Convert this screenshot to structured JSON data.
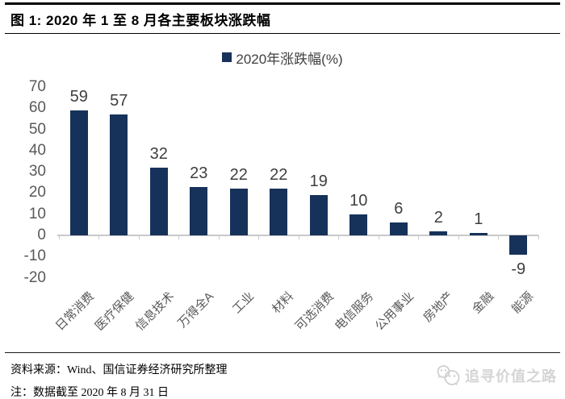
{
  "header": {
    "title": "图 1: 2020 年 1 至 8 月各主要板块涨跌幅"
  },
  "legend": {
    "label": "2020年涨跌幅(%)"
  },
  "chart_data": {
    "type": "bar",
    "title": "2020 年 1 至 8 月各主要板块涨跌幅",
    "legend": "2020年涨跌幅(%)",
    "legend_position": "top",
    "categories": [
      "日常消费",
      "医疗保健",
      "信息技术",
      "万得全A",
      "工业",
      "材料",
      "可选消费",
      "电信服务",
      "公用事业",
      "房地产",
      "金融",
      "能源"
    ],
    "values": [
      59,
      57,
      32,
      23,
      22,
      22,
      19,
      10,
      6,
      2,
      1,
      -9
    ],
    "yticks": [
      70,
      60,
      50,
      40,
      30,
      20,
      10,
      0,
      -10,
      -20
    ],
    "ylim": [
      -20,
      70
    ],
    "xlabel": "",
    "ylabel": "",
    "grid": false,
    "bar_color": "#16325a",
    "axis_color": "#c9c9c9",
    "label_color": "#3f3f3f"
  },
  "footer": {
    "source": "资料来源：Wind、国信证券经济研究所整理",
    "note": "注：数据截至 2020 年 8 月 31 日"
  },
  "watermark": {
    "text": "追寻价值之路",
    "icon": "wechat-icon",
    "color": "#d5d5d5"
  }
}
